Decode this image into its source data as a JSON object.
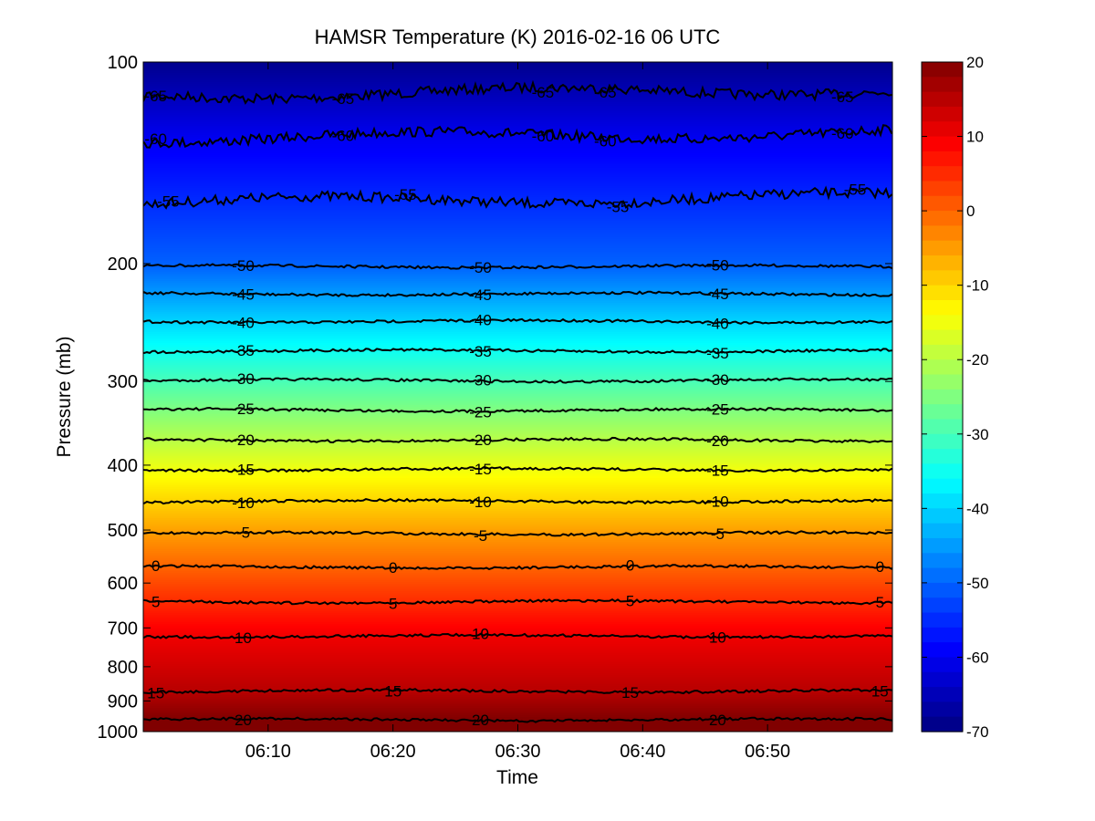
{
  "chart_data": {
    "type": "heatmap",
    "subtype": "filled-contour with labeled isotherms",
    "title": "HAMSR  Temperature (K) 2016-02-16 06 UTC",
    "xlabel": "Time",
    "ylabel": "Pressure (mb)",
    "x_ticks": [
      "06:10",
      "06:20",
      "06:30",
      "06:40",
      "06:50"
    ],
    "x_tick_minutes": [
      10,
      20,
      30,
      40,
      50
    ],
    "x_range_minutes": [
      0,
      60
    ],
    "y_scale": "log",
    "y_reversed": true,
    "y_range": [
      100,
      1000
    ],
    "y_ticks": [
      100,
      200,
      300,
      400,
      500,
      600,
      700,
      800,
      900,
      1000
    ],
    "colorbar": {
      "colormap": "jet",
      "range": [
        -70,
        20
      ],
      "ticks": [
        20,
        10,
        0,
        -10,
        -20,
        -30,
        -40,
        -50,
        -60,
        -70
      ]
    },
    "contours": [
      {
        "level": -65,
        "pressure": 112,
        "labels_at_minutes": [
          1,
          16,
          32,
          37,
          56
        ]
      },
      {
        "level": -60,
        "pressure": 130,
        "labels_at_minutes": [
          1,
          16,
          32,
          37,
          56
        ]
      },
      {
        "level": -55,
        "pressure": 162,
        "labels_at_minutes": [
          2,
          21,
          38,
          57
        ]
      },
      {
        "level": -50,
        "pressure": 202,
        "labels_at_minutes": [
          8,
          27,
          46
        ]
      },
      {
        "level": -45,
        "pressure": 222,
        "labels_at_minutes": [
          8,
          27,
          46
        ]
      },
      {
        "level": -40,
        "pressure": 244,
        "labels_at_minutes": [
          8,
          27,
          46
        ]
      },
      {
        "level": -35,
        "pressure": 270,
        "labels_at_minutes": [
          8,
          27,
          46
        ]
      },
      {
        "level": -30,
        "pressure": 299,
        "labels_at_minutes": [
          8,
          27,
          46
        ]
      },
      {
        "level": -25,
        "pressure": 331,
        "labels_at_minutes": [
          8,
          27,
          46
        ]
      },
      {
        "level": -20,
        "pressure": 367,
        "labels_at_minutes": [
          8,
          27,
          46
        ]
      },
      {
        "level": -15,
        "pressure": 406,
        "labels_at_minutes": [
          8,
          27,
          46
        ]
      },
      {
        "level": -10,
        "pressure": 453,
        "labels_at_minutes": [
          8,
          27,
          46
        ]
      },
      {
        "level": -5,
        "pressure": 506,
        "labels_at_minutes": [
          8,
          27,
          46
        ]
      },
      {
        "level": 0,
        "pressure": 568,
        "labels_at_minutes": [
          1,
          20,
          39,
          59
        ]
      },
      {
        "level": 5,
        "pressure": 640,
        "labels_at_minutes": [
          1,
          20,
          39,
          59
        ]
      },
      {
        "level": 10,
        "pressure": 720,
        "labels_at_minutes": [
          8,
          27,
          46
        ]
      },
      {
        "level": 15,
        "pressure": 870,
        "labels_at_minutes": [
          1,
          20,
          39,
          59
        ]
      },
      {
        "level": 20,
        "pressure": 960,
        "labels_at_minutes": [
          8,
          27,
          46
        ]
      }
    ]
  }
}
